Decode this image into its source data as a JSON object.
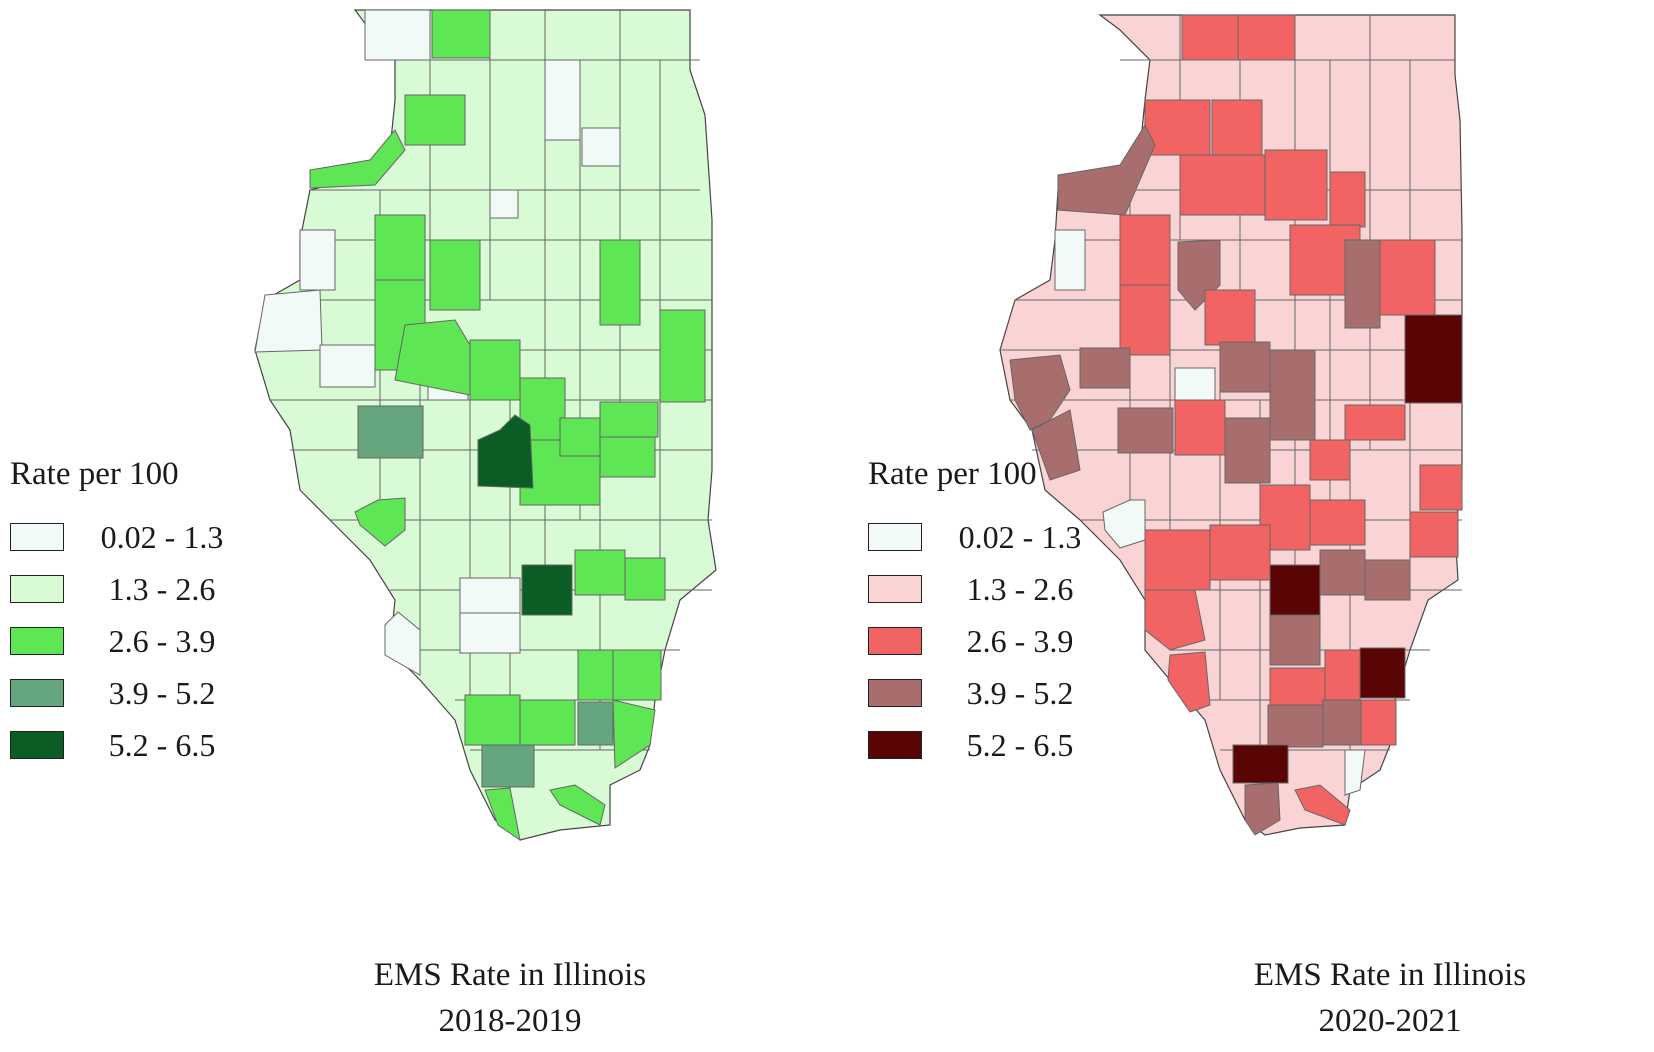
{
  "maps": [
    {
      "id": "left",
      "legend_title": "Rate per 100",
      "legend": [
        {
          "label": "0.02 - 1.3",
          "color": "#f2faf7"
        },
        {
          "label": "1.3 - 2.6",
          "color": "#d8fad4"
        },
        {
          "label": "2.6 - 3.9",
          "color": "#5ee654"
        },
        {
          "label": "3.9 - 5.2",
          "color": "#66a67e"
        },
        {
          "label": "5.2 - 6.5",
          "color": "#0a5e25"
        }
      ],
      "caption_line1": "EMS Rate in Illinois",
      "caption_line2": "2018-2019",
      "outline_color": "#d8fad4"
    },
    {
      "id": "right",
      "legend_title": "Rate per 100",
      "legend": [
        {
          "label": "0.02 - 1.3",
          "color": "#f2faf7"
        },
        {
          "label": "1.3 - 2.6",
          "color": "#fad4d4"
        },
        {
          "label": "2.6 - 3.9",
          "color": "#f26464"
        },
        {
          "label": "3.9 - 5.2",
          "color": "#a86e6e"
        },
        {
          "label": "5.2 - 6.5",
          "color": "#5a0505"
        }
      ],
      "caption_line1": "EMS Rate in Illinois",
      "caption_line2": "2020-2021",
      "outline_color": "#fad4d4"
    }
  ]
}
